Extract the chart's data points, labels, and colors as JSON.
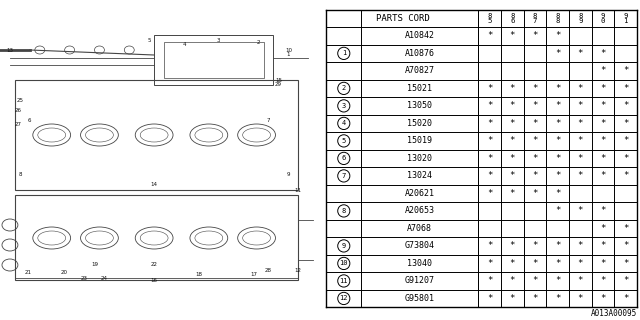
{
  "title": "",
  "fig_width": 6.4,
  "fig_height": 3.2,
  "dpi": 100,
  "bg_color": "#ffffff",
  "col_header": "PARTS CORD",
  "year_cols": [
    "8\n5",
    "8\n6",
    "8\n7",
    "8\n8",
    "8\n9",
    "9\n0",
    "9\n1"
  ],
  "rows": [
    {
      "num": "",
      "part": "A10842",
      "marks": [
        1,
        1,
        1,
        1,
        0,
        0,
        0
      ]
    },
    {
      "num": "1",
      "part": "A10876",
      "marks": [
        0,
        0,
        0,
        1,
        1,
        1,
        0
      ]
    },
    {
      "num": "",
      "part": "A70827",
      "marks": [
        0,
        0,
        0,
        0,
        0,
        1,
        1
      ]
    },
    {
      "num": "2",
      "part": "15021",
      "marks": [
        1,
        1,
        1,
        1,
        1,
        1,
        1
      ]
    },
    {
      "num": "3",
      "part": "13050",
      "marks": [
        1,
        1,
        1,
        1,
        1,
        1,
        1
      ]
    },
    {
      "num": "4",
      "part": "15020",
      "marks": [
        1,
        1,
        1,
        1,
        1,
        1,
        1
      ]
    },
    {
      "num": "5",
      "part": "15019",
      "marks": [
        1,
        1,
        1,
        1,
        1,
        1,
        1
      ]
    },
    {
      "num": "6",
      "part": "13020",
      "marks": [
        1,
        1,
        1,
        1,
        1,
        1,
        1
      ]
    },
    {
      "num": "7",
      "part": "13024",
      "marks": [
        1,
        1,
        1,
        1,
        1,
        1,
        1
      ]
    },
    {
      "num": "",
      "part": "A20621",
      "marks": [
        1,
        1,
        1,
        1,
        0,
        0,
        0
      ]
    },
    {
      "num": "8",
      "part": "A20653",
      "marks": [
        0,
        0,
        0,
        1,
        1,
        1,
        0
      ]
    },
    {
      "num": "",
      "part": "A7068",
      "marks": [
        0,
        0,
        0,
        0,
        0,
        1,
        1
      ]
    },
    {
      "num": "9",
      "part": "G73804",
      "marks": [
        1,
        1,
        1,
        1,
        1,
        1,
        1
      ]
    },
    {
      "num": "10",
      "part": "13040",
      "marks": [
        1,
        1,
        1,
        1,
        1,
        1,
        1
      ]
    },
    {
      "num": "11",
      "part": "G91207",
      "marks": [
        1,
        1,
        1,
        1,
        1,
        1,
        1
      ]
    },
    {
      "num": "12",
      "part": "G95801",
      "marks": [
        1,
        1,
        1,
        1,
        1,
        1,
        1
      ]
    }
  ],
  "footer_text": "A013A00095",
  "line_color": "#000000",
  "text_color": "#000000",
  "star": "*"
}
